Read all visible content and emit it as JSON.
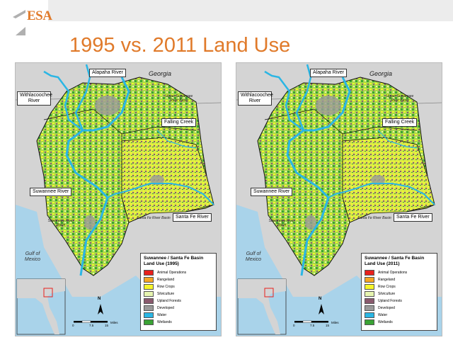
{
  "header": {
    "logo_text": "ESA",
    "title": "1995 vs. 2011 Land Use"
  },
  "colors": {
    "accent": "#e07a2a",
    "topbar": "#ececec"
  },
  "maps": [
    {
      "labels": {
        "alapaha": "Alapaha River",
        "georgia": "Georgia",
        "withlacoochee": "Withlacoochee River",
        "upper_basin": "Upper Suwannee River Basin",
        "falling_creek": "Falling Creek",
        "suwannee": "Suwannee River",
        "santa_fe_basin": "Santa Fe River Basin",
        "santa_fe": "Santa Fe River",
        "suwannee_basin": "Suwannee River Basin",
        "gulf": "Gulf of Mexico"
      },
      "legend": {
        "title_line1": "Suwannee / Santa Fe Basin",
        "title_line2": "Land Use (1995)"
      },
      "scale": {
        "zero": "0",
        "mid": "7.5",
        "end": "15",
        "unit": "Miles"
      },
      "north": "N"
    },
    {
      "labels": {
        "alapaha": "Alapaha River",
        "georgia": "Georgia",
        "withlacoochee": "Withlacoochee River",
        "upper_basin": "Upper Suwannee River Basin",
        "falling_creek": "Falling Creek",
        "suwannee": "Suwannee River",
        "santa_fe_basin": "Santa Fe River Basin",
        "santa_fe": "Santa Fe River",
        "suwannee_basin": "Suwannee River Basin",
        "gulf": "Gulf of Mexico"
      },
      "legend": {
        "title_line1": "Suwannee / Santa Fe Basin",
        "title_line2": "Land Use (2011)"
      },
      "scale": {
        "zero": "0",
        "mid": "7.5",
        "end": "15",
        "unit": "Miles"
      },
      "north": "N"
    }
  ],
  "legend_items": [
    {
      "label": "Animal Operations",
      "color": "#e8201c"
    },
    {
      "label": "Rangeland",
      "color": "#f5a623"
    },
    {
      "label": "Row Crops",
      "color": "#f6f62a"
    },
    {
      "label": "Silviculture",
      "color": "#e6f5b0"
    },
    {
      "label": "Upland Forests",
      "color": "#8a5a6e"
    },
    {
      "label": "Developed",
      "color": "#9a9a9a"
    },
    {
      "label": "Water",
      "color": "#2bb6e4"
    },
    {
      "label": "Wetlands",
      "color": "#3aa335"
    }
  ]
}
